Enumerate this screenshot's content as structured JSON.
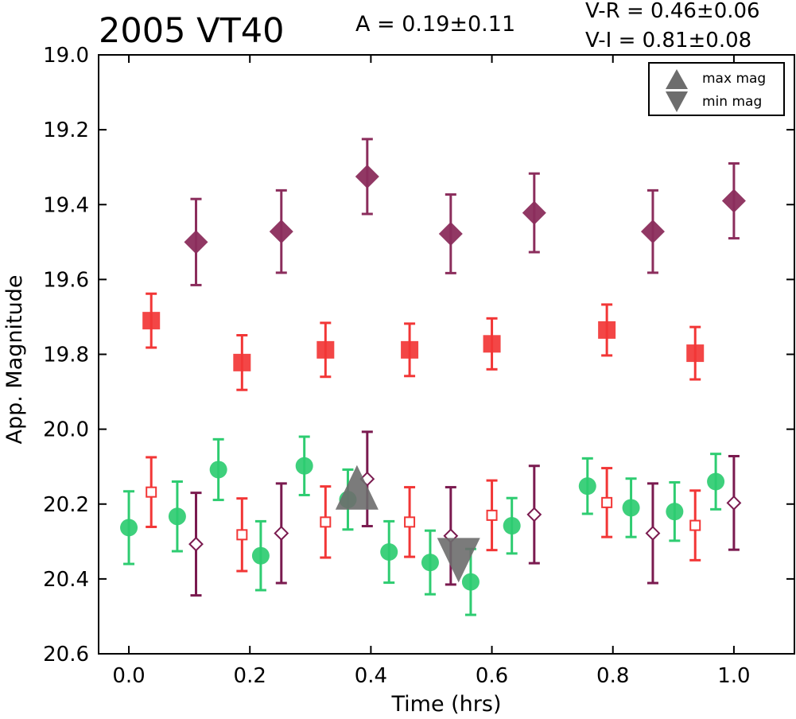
{
  "header": {
    "title": "2005 VT40",
    "amplitude": "A  = 0.19±0.11",
    "v_r": "V-R = 0.46±0.06",
    "v_i": "V-I  = 0.81±0.08"
  },
  "legend": {
    "max_label": "max mag",
    "min_label": "min mag"
  },
  "colors": {
    "green": "#2ecc71",
    "red": "#f23636",
    "purple": "#8b2d5c",
    "purple_dark": "#7a1a4f",
    "marker_gray": "#6d6d6d"
  },
  "chart_data": {
    "type": "scatter",
    "title": "2005 VT40",
    "xlabel": "Time (hrs)",
    "ylabel": "App. Magnitude",
    "xlim": [
      -0.05,
      1.1
    ],
    "ylim": [
      20.6,
      19.0
    ],
    "y_inverted": true,
    "x_ticks": [
      "0.0",
      "0.2",
      "0.4",
      "0.6",
      "0.8",
      "1.0"
    ],
    "y_ticks": [
      "19.0",
      "19.2",
      "19.4",
      "19.6",
      "19.8",
      "20.0",
      "20.2",
      "20.4",
      "20.6"
    ],
    "legend_position": "top-right",
    "series": [
      {
        "style": "filled-diamond",
        "color": "#8b2d5c",
        "points": [
          {
            "x": 0.111,
            "y": 19.5,
            "err": 0.115
          },
          {
            "x": 0.252,
            "y": 19.472,
            "err": 0.11
          },
          {
            "x": 0.394,
            "y": 19.325,
            "err": 0.1
          },
          {
            "x": 0.532,
            "y": 19.478,
            "err": 0.105
          },
          {
            "x": 0.67,
            "y": 19.422,
            "err": 0.105
          },
          {
            "x": 0.866,
            "y": 19.472,
            "err": 0.11
          },
          {
            "x": 1.0,
            "y": 19.39,
            "err": 0.1
          }
        ]
      },
      {
        "style": "filled-square",
        "color": "#f23636",
        "points": [
          {
            "x": 0.037,
            "y": 19.71,
            "err": 0.072
          },
          {
            "x": 0.187,
            "y": 19.822,
            "err": 0.073
          },
          {
            "x": 0.325,
            "y": 19.788,
            "err": 0.072
          },
          {
            "x": 0.464,
            "y": 19.788,
            "err": 0.07
          },
          {
            "x": 0.6,
            "y": 19.772,
            "err": 0.068
          },
          {
            "x": 0.79,
            "y": 19.735,
            "err": 0.068
          },
          {
            "x": 0.936,
            "y": 19.797,
            "err": 0.07
          }
        ]
      },
      {
        "style": "filled-circle",
        "color": "#2ecc71",
        "points": [
          {
            "x": 0.0,
            "y": 20.263,
            "err": 0.097
          },
          {
            "x": 0.08,
            "y": 20.233,
            "err": 0.093
          },
          {
            "x": 0.148,
            "y": 20.108,
            "err": 0.081
          },
          {
            "x": 0.218,
            "y": 20.338,
            "err": 0.092
          },
          {
            "x": 0.29,
            "y": 20.098,
            "err": 0.078
          },
          {
            "x": 0.362,
            "y": 20.188,
            "err": 0.08
          },
          {
            "x": 0.43,
            "y": 20.328,
            "err": 0.082
          },
          {
            "x": 0.498,
            "y": 20.356,
            "err": 0.085
          },
          {
            "x": 0.565,
            "y": 20.408,
            "err": 0.088
          },
          {
            "x": 0.633,
            "y": 20.258,
            "err": 0.074
          },
          {
            "x": 0.758,
            "y": 20.152,
            "err": 0.074
          },
          {
            "x": 0.83,
            "y": 20.21,
            "err": 0.078
          },
          {
            "x": 0.902,
            "y": 20.22,
            "err": 0.078
          },
          {
            "x": 0.97,
            "y": 20.14,
            "err": 0.074
          }
        ]
      },
      {
        "style": "open-square",
        "color": "#f23636",
        "points": [
          {
            "x": 0.037,
            "y": 20.168,
            "err": 0.093
          },
          {
            "x": 0.187,
            "y": 20.282,
            "err": 0.097
          },
          {
            "x": 0.325,
            "y": 20.248,
            "err": 0.095
          },
          {
            "x": 0.464,
            "y": 20.248,
            "err": 0.093
          },
          {
            "x": 0.6,
            "y": 20.23,
            "err": 0.093
          },
          {
            "x": 0.79,
            "y": 20.196,
            "err": 0.092
          },
          {
            "x": 0.936,
            "y": 20.257,
            "err": 0.093
          }
        ]
      },
      {
        "style": "open-diamond",
        "color": "#7a1a4f",
        "points": [
          {
            "x": 0.111,
            "y": 20.307,
            "err": 0.137
          },
          {
            "x": 0.252,
            "y": 20.278,
            "err": 0.133
          },
          {
            "x": 0.394,
            "y": 20.133,
            "err": 0.126
          },
          {
            "x": 0.532,
            "y": 20.285,
            "err": 0.13
          },
          {
            "x": 0.67,
            "y": 20.228,
            "err": 0.13
          },
          {
            "x": 0.866,
            "y": 20.278,
            "err": 0.133
          },
          {
            "x": 1.0,
            "y": 20.197,
            "err": 0.125
          }
        ]
      }
    ],
    "markers": [
      {
        "label": "max mag",
        "shape": "triangle-up",
        "x": 0.377,
        "y": 20.185
      },
      {
        "label": "min mag",
        "shape": "triangle-down",
        "x": 0.545,
        "y": 20.35
      }
    ]
  }
}
